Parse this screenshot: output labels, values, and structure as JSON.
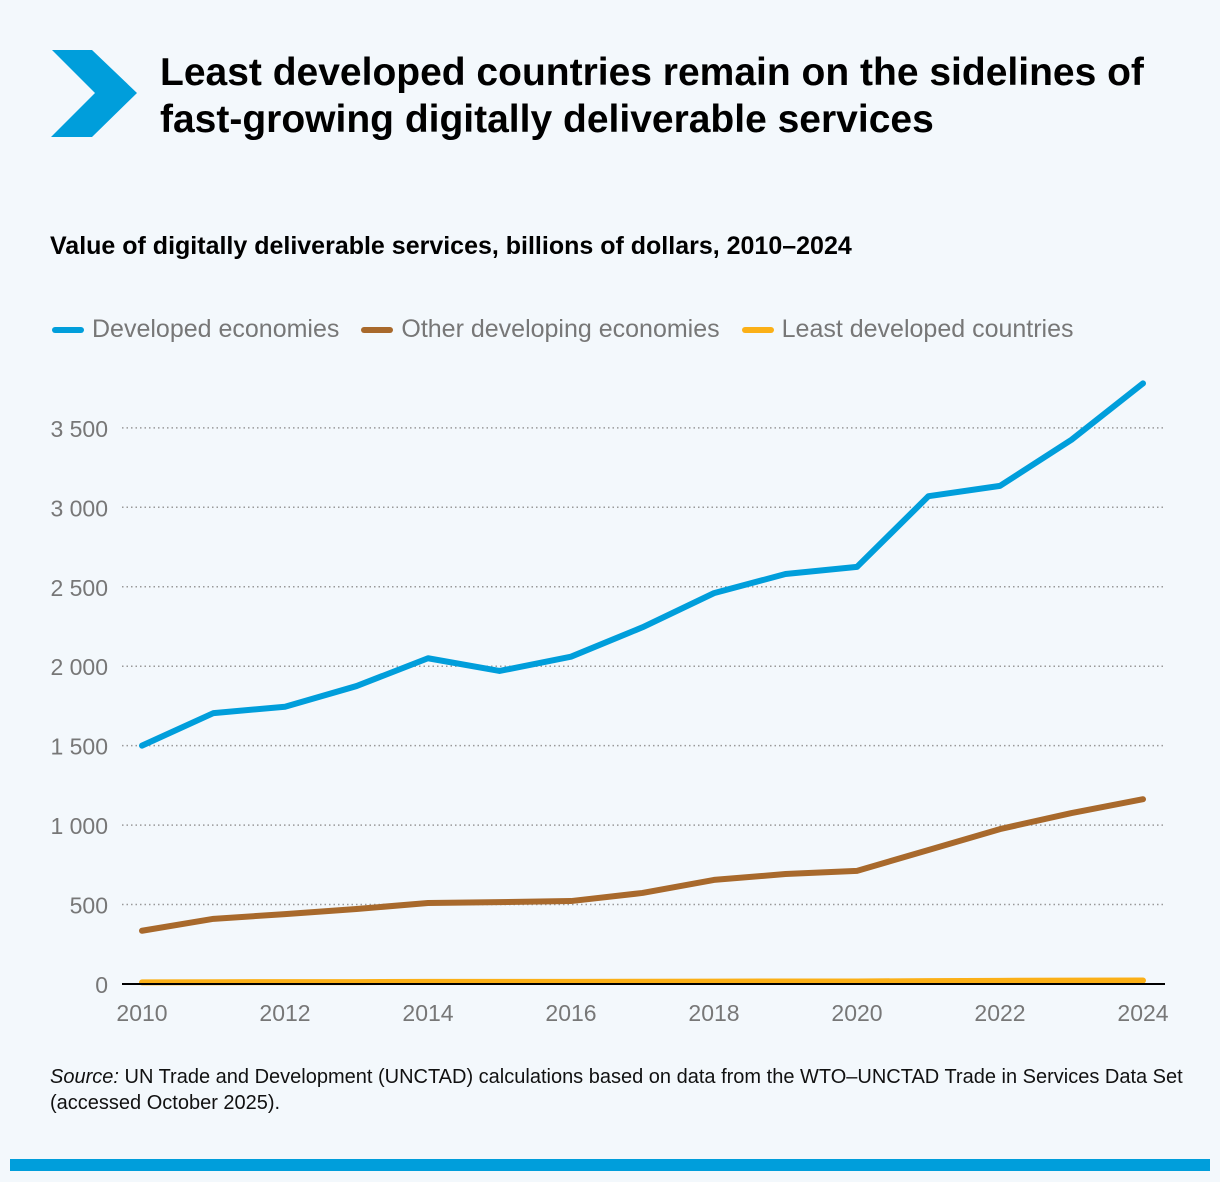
{
  "title": "Least developed countries remain on the sidelines of fast-growing digitally deliverable services",
  "subtitle": "Value of digitally deliverable services, billions of dollars, 2010–2024",
  "source_label": "Source:",
  "source_text": " UN Trade and Development (UNCTAD) calculations based on data from the WTO–UNCTAD Trade in Services Data Set (accessed October 2025).",
  "colors": {
    "accent": "#009edb",
    "developed": "#009edb",
    "other": "#a8692c",
    "ldc": "#fbb017"
  },
  "chart_data": {
    "type": "line",
    "title": "Value of digitally deliverable services, billions of dollars, 2010–2024",
    "xlabel": "",
    "ylabel": "",
    "x": [
      2010,
      2011,
      2012,
      2013,
      2014,
      2015,
      2016,
      2017,
      2018,
      2019,
      2020,
      2021,
      2022,
      2023,
      2024
    ],
    "xticks": [
      "2010",
      "2012",
      "2014",
      "2016",
      "2018",
      "2020",
      "2022",
      "2024"
    ],
    "yticks": [
      "0",
      "500",
      "1 000",
      "1 500",
      "2 000",
      "2 500",
      "3 000",
      "3 500"
    ],
    "ylim": [
      0,
      3800
    ],
    "grid": "horizontal dotted",
    "legend": "top-left",
    "series": [
      {
        "name": "Developed economies",
        "color": "#009edb",
        "values": [
          1500,
          1705,
          1745,
          1875,
          2050,
          1970,
          2060,
          2245,
          2460,
          2580,
          2625,
          3070,
          3135,
          3425,
          3780
        ]
      },
      {
        "name": "Other developing economies",
        "color": "#a8692c",
        "values": [
          335,
          410,
          440,
          472,
          510,
          515,
          522,
          573,
          655,
          692,
          712,
          843,
          975,
          1076,
          1163
        ]
      },
      {
        "name": "Least developed countries",
        "color": "#fbb017",
        "values": [
          10,
          11,
          12,
          12,
          13,
          13,
          13,
          14,
          15,
          16,
          16,
          18,
          20,
          21,
          22
        ]
      }
    ]
  }
}
